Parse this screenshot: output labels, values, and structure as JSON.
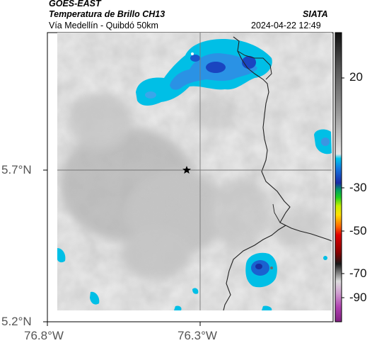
{
  "header": {
    "source": "GOES-EAST",
    "product": "Temperatura de Brillo CH13",
    "region": "Vía Medellín - Quibdó 50km",
    "institution": "SIATA",
    "timestamp": "2024-04-22 12:49"
  },
  "map": {
    "lat_ticks": [
      "5.7°N",
      "5.2°N"
    ],
    "lon_ticks": [
      "76.8°W",
      "76.3°W"
    ],
    "marker": "star-location-marker"
  },
  "colorbar": {
    "ticks": [
      "20",
      "-30",
      "-50",
      "-70",
      "-90"
    ],
    "colors": {
      "warm_gray_light": "#e8e8e8",
      "cold_cyan": "#00bfe6",
      "colder_blue": "#1560d8",
      "deep_blue": "#122a9a"
    }
  }
}
